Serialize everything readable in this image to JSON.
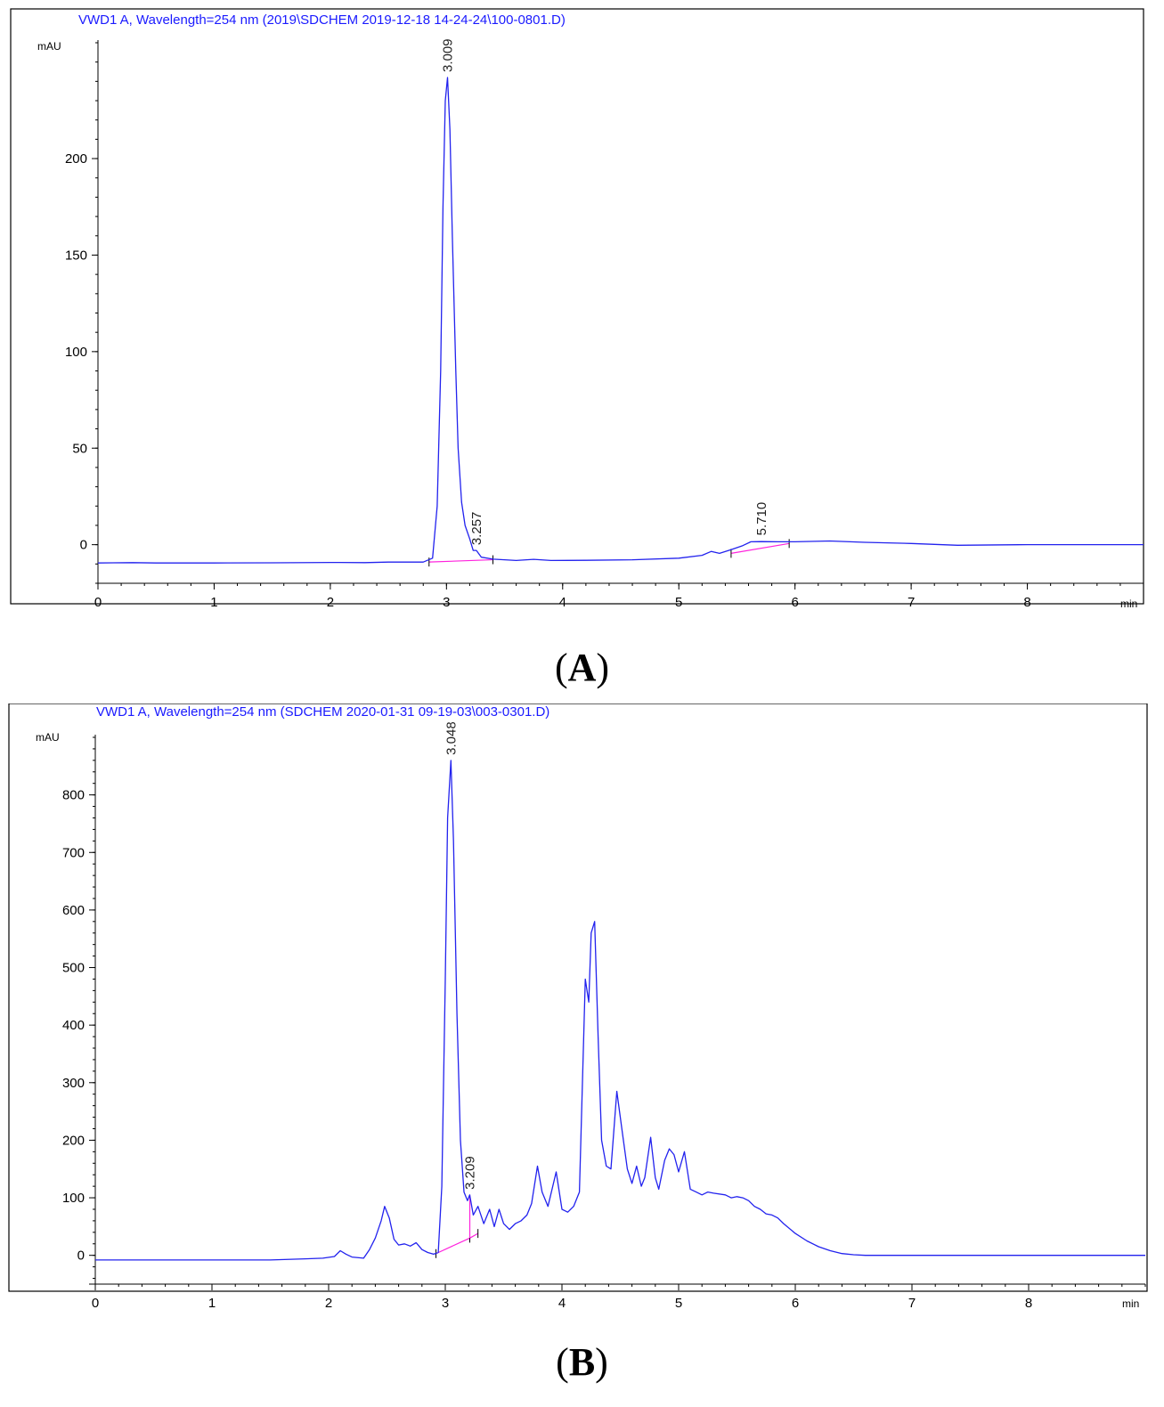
{
  "chart_data": [
    {
      "type": "line",
      "title": "VWD1 A, Wavelength=254 nm (2019\\SDCHEM 2019-12-18 14-24-24\\100-0801.D)",
      "ylabel": "mAU",
      "xlabel": "min",
      "xlim": [
        0,
        9.0
      ],
      "ylim": [
        -20,
        260
      ],
      "xticks": [
        0,
        1,
        2,
        3,
        4,
        5,
        6,
        7,
        8
      ],
      "yticks": [
        0,
        50,
        100,
        150,
        200
      ],
      "grid": false,
      "colors": {
        "trace": "#2222ee",
        "baseline": "#ff22dd",
        "title": "#1a1aff"
      },
      "peak_labels": [
        {
          "rt": 3.009,
          "label": "3.009",
          "y": 242
        },
        {
          "rt": 3.257,
          "label": "3.257",
          "y": -3
        },
        {
          "rt": 5.71,
          "label": "5.710",
          "y": 2
        }
      ],
      "series": [
        {
          "x": [
            0,
            0.3,
            0.5,
            1.0,
            1.5,
            2.0,
            2.3,
            2.5,
            2.8,
            2.88,
            2.92,
            2.95,
            2.97,
            2.99,
            3.009,
            3.03,
            3.05,
            3.08,
            3.1,
            3.13,
            3.16,
            3.2,
            3.23,
            3.257,
            3.3,
            3.4,
            3.6,
            3.75,
            3.9,
            4.2,
            4.6,
            5.0,
            5.2,
            5.28,
            5.35,
            5.45,
            5.55,
            5.62,
            5.71,
            5.85,
            6.0,
            6.3,
            6.6,
            7.0,
            7.4,
            8.0,
            9.0
          ],
          "y": [
            -9.5,
            -9.3,
            -9.5,
            -9.5,
            -9.4,
            -9.2,
            -9.3,
            -9.0,
            -9.0,
            -7,
            20,
            90,
            175,
            230,
            242,
            215,
            160,
            90,
            50,
            22,
            10,
            3,
            -3,
            -3,
            -6.5,
            -7.5,
            -8.2,
            -7.6,
            -8.2,
            -8.1,
            -7.8,
            -7.0,
            -5.5,
            -3.5,
            -4.5,
            -2.6,
            -0.5,
            1.5,
            1.6,
            1.5,
            1.5,
            1.9,
            1.2,
            0.6,
            -0.3,
            0,
            0
          ]
        }
      ],
      "baselines": [
        {
          "x": [
            2.85,
            3.4
          ],
          "y": [
            -9,
            -7.8
          ]
        },
        {
          "x": [
            5.45,
            5.95
          ],
          "y": [
            -4.5,
            0.6
          ]
        }
      ]
    },
    {
      "type": "line",
      "title": "VWD1 A, Wavelength=254 nm (SDCHEM 2020-01-31 09-19-03\\003-0301.D)",
      "ylabel": "mAU",
      "xlabel": "min",
      "xlim": [
        0,
        9.0
      ],
      "ylim": [
        -50,
        900
      ],
      "xticks": [
        0,
        1,
        2,
        3,
        4,
        5,
        6,
        7,
        8
      ],
      "yticks": [
        -50,
        0,
        100,
        200,
        300,
        400,
        500,
        600,
        700,
        800
      ],
      "grid": false,
      "colors": {
        "trace": "#2222ee",
        "baseline": "#ff22dd",
        "title": "#1a1aff"
      },
      "peak_labels": [
        {
          "rt": 3.048,
          "label": "3.048",
          "y": 860
        },
        {
          "rt": 3.209,
          "label": "3.209",
          "y": 105
        }
      ],
      "series": [
        {
          "x": [
            0,
            0.5,
            1.0,
            1.5,
            1.8,
            1.95,
            2.05,
            2.1,
            2.15,
            2.2,
            2.3,
            2.35,
            2.4,
            2.45,
            2.48,
            2.52,
            2.56,
            2.6,
            2.65,
            2.7,
            2.75,
            2.8,
            2.85,
            2.9,
            2.94,
            2.97,
            3.0,
            3.02,
            3.048,
            3.07,
            3.1,
            3.13,
            3.16,
            3.19,
            3.209,
            3.24,
            3.28,
            3.33,
            3.38,
            3.42,
            3.46,
            3.5,
            3.55,
            3.6,
            3.65,
            3.7,
            3.74,
            3.79,
            3.83,
            3.88,
            3.95,
            4.0,
            4.05,
            4.1,
            4.15,
            4.2,
            4.23,
            4.25,
            4.28,
            4.31,
            4.34,
            4.38,
            4.42,
            4.47,
            4.52,
            4.56,
            4.6,
            4.64,
            4.68,
            4.71,
            4.76,
            4.8,
            4.83,
            4.88,
            4.92,
            4.96,
            5.0,
            5.05,
            5.1,
            5.15,
            5.2,
            5.25,
            5.3,
            5.4,
            5.45,
            5.5,
            5.55,
            5.6,
            5.65,
            5.7,
            5.75,
            5.8,
            5.85,
            5.9,
            6.0,
            6.1,
            6.2,
            6.3,
            6.4,
            6.5,
            6.6,
            6.7,
            6.8,
            7.0,
            7.5,
            8.0,
            9.0
          ],
          "y": [
            -8,
            -8,
            -8,
            -8,
            -6,
            -5,
            -2,
            8,
            2,
            -3,
            -5,
            10,
            30,
            60,
            85,
            65,
            28,
            18,
            20,
            16,
            22,
            10,
            5,
            2,
            5,
            120,
            480,
            760,
            860,
            720,
            420,
            200,
            110,
            95,
            105,
            70,
            85,
            55,
            80,
            50,
            80,
            55,
            45,
            55,
            60,
            70,
            90,
            155,
            110,
            85,
            145,
            80,
            75,
            85,
            110,
            480,
            440,
            560,
            580,
            380,
            200,
            155,
            150,
            285,
            210,
            150,
            125,
            155,
            120,
            135,
            205,
            135,
            115,
            165,
            185,
            175,
            145,
            180,
            115,
            110,
            105,
            110,
            108,
            105,
            100,
            102,
            100,
            95,
            85,
            80,
            72,
            70,
            65,
            55,
            38,
            25,
            15,
            8,
            3,
            1,
            0,
            0,
            0,
            0,
            0,
            0,
            0
          ]
        }
      ],
      "baselines": [
        {
          "x": [
            2.92,
            3.21
          ],
          "y": [
            3,
            30
          ]
        },
        {
          "x": [
            3.21,
            3.28
          ],
          "y": [
            30,
            38
          ]
        }
      ],
      "drop_lines": [
        {
          "x": 3.21,
          "y0": 30,
          "y1": 105
        }
      ]
    }
  ],
  "captions": [
    "(A)",
    "(B)"
  ]
}
